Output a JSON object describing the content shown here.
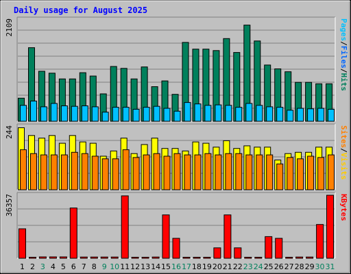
{
  "chart_data": {
    "type": "bar",
    "title": "Daily usage for August 2025",
    "categories": [
      "1",
      "2",
      "3",
      "4",
      "5",
      "6",
      "7",
      "8",
      "9",
      "10",
      "11",
      "12",
      "13",
      "14",
      "15",
      "16",
      "17",
      "18",
      "19",
      "20",
      "21",
      "22",
      "23",
      "24",
      "25",
      "26",
      "27",
      "28",
      "29",
      "30",
      "31"
    ],
    "weekend_days": [
      "3",
      "9",
      "10",
      "16",
      "17",
      "23",
      "24",
      "30",
      "31"
    ],
    "panels": [
      {
        "name": "hits-files",
        "max_label": "2109",
        "ymax": 2109,
        "series": [
          {
            "name": "Hits",
            "color": "#00805c",
            "values": [
              480,
              1530,
              1040,
              1000,
              880,
              880,
              1010,
              940,
              570,
              1140,
              1100,
              880,
              1130,
              720,
              840,
              560,
              1640,
              1500,
              1500,
              1470,
              1720,
              1430,
              2000,
              1670,
              1170,
              1090,
              1030,
              810,
              810,
              780,
              780
            ]
          },
          {
            "name": "Files",
            "color": "#00c0ff",
            "values": [
              330,
              420,
              300,
              370,
              320,
              310,
              320,
              300,
              190,
              290,
              290,
              250,
              290,
              310,
              270,
              210,
              390,
              360,
              330,
              340,
              330,
              290,
              370,
              330,
              300,
              290,
              230,
              270,
              260,
              270,
              250
            ]
          }
        ]
      },
      {
        "name": "visits-sites",
        "max_label": "244",
        "ymax": 244,
        "series": [
          {
            "name": "Visits",
            "color": "#ffff00",
            "values": [
              240,
              210,
              200,
              210,
              180,
              210,
              185,
              180,
              130,
              150,
              200,
              140,
              175,
              200,
              160,
              160,
              150,
              185,
              180,
              165,
              190,
              160,
              170,
              165,
              165,
              115,
              140,
              145,
              145,
              165,
              165
            ]
          },
          {
            "name": "Sites",
            "color": "#ff8000",
            "values": [
              155,
              140,
              135,
              135,
              135,
              145,
              140,
              130,
              120,
              120,
              155,
              125,
              135,
              140,
              130,
              140,
              135,
              135,
              140,
              135,
              140,
              140,
              135,
              135,
              135,
              100,
              125,
              120,
              130,
              125,
              135
            ]
          }
        ]
      },
      {
        "name": "kbytes",
        "max_label": "36357",
        "ymax": 36357,
        "series": [
          {
            "name": "KBytes",
            "color": "#ff0000",
            "values": [
              17000,
              500,
              800,
              800,
              800,
              29000,
              700,
              700,
              700,
              700,
              36000,
              500,
              500,
              700,
              25000,
              11500,
              500,
              500,
              500,
              6000,
              25000,
              6000,
              500,
              500,
              12500,
              11500,
              500,
              700,
              700,
              19500,
              36357
            ]
          }
        ]
      }
    ],
    "right_labels": [
      {
        "parts": [
          {
            "text": "Pages",
            "color": "#00c0ff"
          },
          {
            "text": "/",
            "color": "#000000"
          },
          {
            "text": "Files",
            "color": "#0066ff"
          },
          {
            "text": "/",
            "color": "#000000"
          },
          {
            "text": "Hits",
            "color": "#00805c"
          }
        ]
      },
      {
        "parts": [
          {
            "text": "Sites",
            "color": "#ff8000"
          },
          {
            "text": "/",
            "color": "#000000"
          },
          {
            "text": "Visits",
            "color": "#ffcc00"
          }
        ]
      },
      {
        "parts": [
          {
            "text": "KBytes",
            "color": "#ff0000"
          }
        ]
      }
    ],
    "colors": {
      "background": "#c0c0c0",
      "plot_background": "#c0c0c0",
      "title": "#0000ff",
      "weekday_label": "#000000",
      "weekend_label": "#00805c",
      "gridline": "#808080"
    }
  }
}
